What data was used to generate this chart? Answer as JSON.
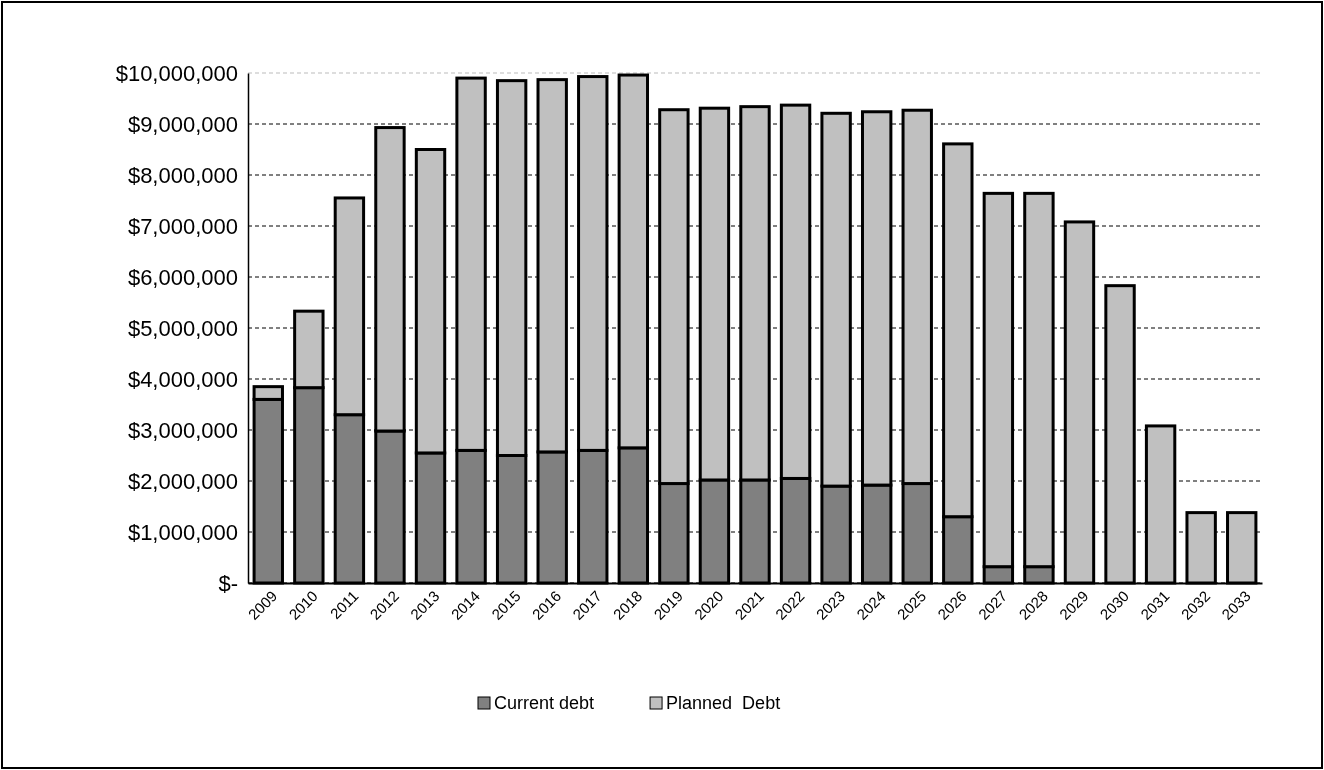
{
  "chart_data": {
    "type": "bar",
    "stacked": true,
    "categories": [
      "2009",
      "2010",
      "2011",
      "2012",
      "2013",
      "2014",
      "2015",
      "2016",
      "2017",
      "2018",
      "2019",
      "2020",
      "2021",
      "2022",
      "2023",
      "2024",
      "2025",
      "2026",
      "2027",
      "2028",
      "2029",
      "2030",
      "2031",
      "2032",
      "2033"
    ],
    "series": [
      {
        "name": "Current debt",
        "color": "#808080",
        "values": [
          3600000,
          3830000,
          3300000,
          2980000,
          2550000,
          2600000,
          2500000,
          2570000,
          2600000,
          2650000,
          1950000,
          2020000,
          2020000,
          2050000,
          1900000,
          1920000,
          1950000,
          1300000,
          320000,
          320000,
          0,
          0,
          0,
          0,
          0
        ]
      },
      {
        "name": "Planned  Debt",
        "color": "#c0c0c0",
        "values": [
          250000,
          1500000,
          4250000,
          5950000,
          5950000,
          7300000,
          7350000,
          7300000,
          7330000,
          7310000,
          7330000,
          7290000,
          7320000,
          7320000,
          7310000,
          7320000,
          7320000,
          7310000,
          7320000,
          7320000,
          7080000,
          5830000,
          3080000,
          1380000,
          1380000
        ]
      }
    ],
    "ylim": [
      0,
      10000000
    ],
    "yticks": [
      {
        "value": 0,
        "label": "$-"
      },
      {
        "value": 1000000,
        "label": "$1,000,000"
      },
      {
        "value": 2000000,
        "label": "$2,000,000"
      },
      {
        "value": 3000000,
        "label": "$3,000,000"
      },
      {
        "value": 4000000,
        "label": "$4,000,000"
      },
      {
        "value": 5000000,
        "label": "$5,000,000"
      },
      {
        "value": 6000000,
        "label": "$6,000,000"
      },
      {
        "value": 7000000,
        "label": "$7,000,000"
      },
      {
        "value": 8000000,
        "label": "$8,000,000"
      },
      {
        "value": 9000000,
        "label": "$9,000,000"
      },
      {
        "value": 10000000,
        "label": "$10,000,000"
      }
    ],
    "grid": "y",
    "legend": "bottom"
  }
}
